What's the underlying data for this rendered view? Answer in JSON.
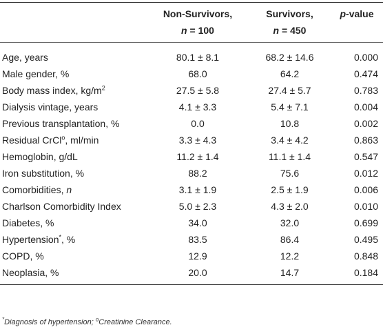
{
  "table": {
    "header": {
      "col1_line1": "Non-Survivors,",
      "col1_var": "n",
      "col1_rest": " = 100",
      "col2_line1": "Survivors,",
      "col2_var": "n",
      "col2_rest": " = 450",
      "col3_var": "p",
      "col3_rest": "-value"
    },
    "rows": [
      {
        "label": "Age, years",
        "non_survivors": "80.1 ± 8.1",
        "survivors": "68.2 ± 14.6",
        "p_value": "0.000"
      },
      {
        "label": "Male gender, %",
        "non_survivors": "68.0",
        "survivors": "64.2",
        "p_value": "0.474"
      },
      {
        "label": "Body mass index, kg/m",
        "label_sup": "2",
        "non_survivors": "27.5 ± 5.8",
        "survivors": "27.4 ± 5.7",
        "p_value": "0.783"
      },
      {
        "label": "Dialysis vintage, years",
        "non_survivors": "4.1 ± 3.3",
        "survivors": "5.4 ± 7.1",
        "p_value": "0.004"
      },
      {
        "label": "Previous transplantation, %",
        "non_survivors": "0.0",
        "survivors": "10.8",
        "p_value": "0.002"
      },
      {
        "label": "Residual CrCl",
        "label_sup": "o",
        "label_after": ", ml/min",
        "non_survivors": "3.3 ± 4.3",
        "survivors": "3.4 ± 4.2",
        "p_value": "0.863"
      },
      {
        "label": "Hemoglobin, g/dL",
        "non_survivors": "11.2 ± 1.4",
        "survivors": "11.1 ± 1.4",
        "p_value": "0.547"
      },
      {
        "label": "Iron substitution, %",
        "non_survivors": "88.2",
        "survivors": "75.6",
        "p_value": "0.012"
      },
      {
        "label": "Comorbidities, ",
        "label_ital": "n",
        "non_survivors": "3.1 ± 1.9",
        "survivors": "2.5 ± 1.9",
        "p_value": "0.006"
      },
      {
        "label": "Charlson Comorbidity Index",
        "non_survivors": "5.0 ± 2.3",
        "survivors": "4.3 ± 2.0",
        "p_value": "0.010"
      },
      {
        "label": "Diabetes, %",
        "non_survivors": "34.0",
        "survivors": "32.0",
        "p_value": "0.699"
      },
      {
        "label": "Hypertension",
        "label_sup": "*",
        "label_after": ", %",
        "non_survivors": "83.5",
        "survivors": "86.4",
        "p_value": "0.495"
      },
      {
        "label": "COPD, %",
        "non_survivors": "12.9",
        "survivors": "12.2",
        "p_value": "0.848"
      },
      {
        "label": "Neoplasia, %",
        "non_survivors": "20.0",
        "survivors": "14.7",
        "p_value": "0.184"
      }
    ]
  },
  "footnote": {
    "mark1": "*",
    "text1": "Diagnosis of hypertension; ",
    "mark2": "o",
    "text2": "Creatinine Clearance."
  }
}
